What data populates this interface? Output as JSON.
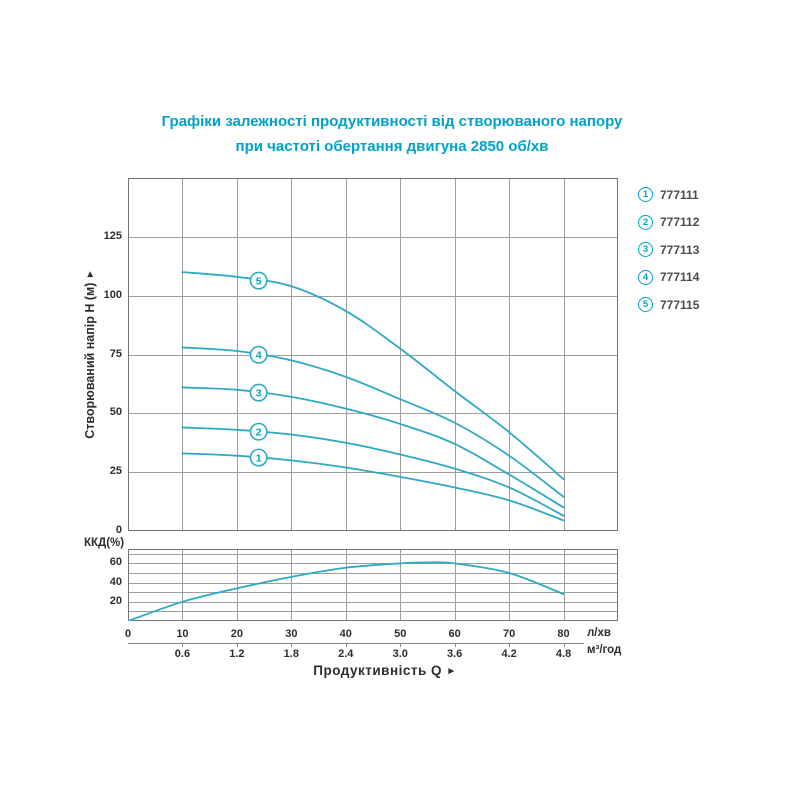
{
  "title": {
    "line1": "Графіки залежності продуктивності від створюваного напору",
    "line2": "при частоті обертання двигуна 2850 об/хв"
  },
  "colors": {
    "accent": "#00a2c5",
    "curve": "#2fa8c6",
    "grid": "#9d9d9d",
    "border": "#747474",
    "text_dark": "#2d2d2f",
    "legend_text": "#4b4c4e"
  },
  "legend": [
    {
      "num": "1",
      "code": "777111"
    },
    {
      "num": "2",
      "code": "777112"
    },
    {
      "num": "3",
      "code": "777113"
    },
    {
      "num": "4",
      "code": "777114"
    },
    {
      "num": "5",
      "code": "777115"
    }
  ],
  "axis": {
    "y_head_label": "Створюваний напір H (м)",
    "y_eff_label": "ККД(%)",
    "x_title": "Продуктивність  Q",
    "arrow": "►",
    "unit_lmin": "л/хв",
    "unit_m3h": "м³/год"
  },
  "x_axis": {
    "ticks_lmin": [
      "0",
      "10",
      "20",
      "30",
      "40",
      "50",
      "60",
      "70",
      "80"
    ],
    "ticks_m3h": [
      "0.6",
      "1.2",
      "1.8",
      "2.4",
      "3.0",
      "3.6",
      "4.2",
      "4.8"
    ]
  },
  "chart_data": [
    {
      "type": "line",
      "id": "head",
      "ylabel": "Створюваний напір H (м)",
      "xlabel": "Продуктивність Q (л/хв)",
      "xlim": [
        0,
        90
      ],
      "ylim": [
        0,
        150
      ],
      "x_gridlines": [
        10,
        20,
        30,
        40,
        50,
        60,
        70,
        80
      ],
      "y_gridlines": [
        25,
        50,
        75,
        100,
        125
      ],
      "yticks": [
        0,
        25,
        50,
        75,
        100,
        125
      ],
      "grid": true,
      "legend_position": "right",
      "marker_x": 24,
      "x": [
        10,
        20,
        30,
        40,
        50,
        60,
        70,
        80
      ],
      "series": [
        {
          "name": "777111",
          "marker": "1",
          "values": [
            33,
            32,
            30,
            27,
            23,
            18.5,
            13,
            4.5
          ]
        },
        {
          "name": "777112",
          "marker": "2",
          "values": [
            44,
            43,
            41,
            37.5,
            32.5,
            26.5,
            18.5,
            6.5
          ]
        },
        {
          "name": "777113",
          "marker": "3",
          "values": [
            61,
            60,
            57,
            52,
            45.5,
            37,
            24,
            10
          ]
        },
        {
          "name": "777114",
          "marker": "4",
          "values": [
            78,
            76.5,
            72.5,
            65.5,
            56,
            46,
            32,
            14.5
          ]
        },
        {
          "name": "777115",
          "marker": "5",
          "values": [
            110,
            108,
            104,
            93.5,
            77.5,
            59.5,
            42,
            22
          ]
        }
      ]
    },
    {
      "type": "line",
      "id": "efficiency",
      "ylabel": "ККД(%)",
      "xlim": [
        0,
        90
      ],
      "ylim": [
        0,
        75
      ],
      "x_gridlines": [
        10,
        20,
        30,
        40,
        50,
        60,
        70,
        80
      ],
      "y_gridlines": [
        10,
        20,
        30,
        40,
        50,
        60,
        70
      ],
      "yticks": [
        20,
        40,
        60
      ],
      "grid": true,
      "series": [
        {
          "name": "ККД",
          "x": [
            0,
            10,
            20,
            30,
            40,
            50,
            55,
            60,
            70,
            80
          ],
          "values": [
            0,
            20,
            34,
            46,
            55.5,
            60,
            61,
            60,
            50,
            28
          ]
        }
      ]
    }
  ]
}
